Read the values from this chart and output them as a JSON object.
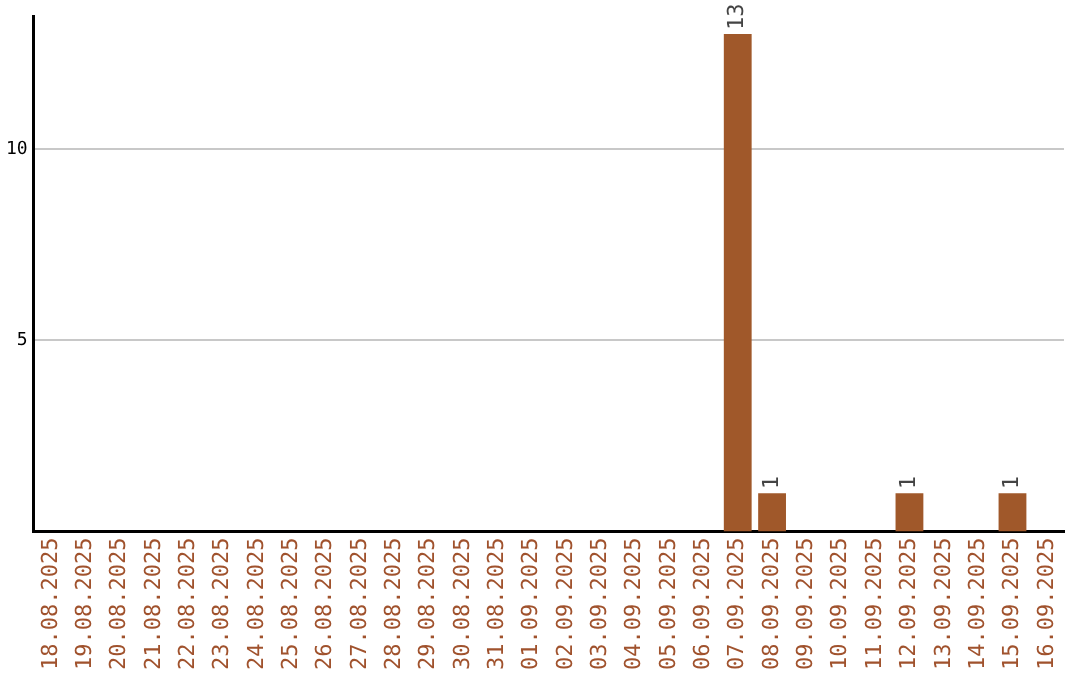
{
  "chart_data": {
    "type": "bar",
    "categories": [
      "18.08.2025",
      "19.08.2025",
      "20.08.2025",
      "21.08.2025",
      "22.08.2025",
      "23.08.2025",
      "24.08.2025",
      "25.08.2025",
      "26.08.2025",
      "27.08.2025",
      "28.08.2025",
      "29.08.2025",
      "30.08.2025",
      "31.08.2025",
      "01.09.2025",
      "02.09.2025",
      "03.09.2025",
      "04.09.2025",
      "05.09.2025",
      "06.09.2025",
      "07.09.2025",
      "08.09.2025",
      "09.09.2025",
      "10.09.2025",
      "11.09.2025",
      "12.09.2025",
      "13.09.2025",
      "14.09.2025",
      "15.09.2025",
      "16.09.2025"
    ],
    "values": [
      0,
      0,
      0,
      0,
      0,
      0,
      0,
      0,
      0,
      0,
      0,
      0,
      0,
      0,
      0,
      0,
      0,
      0,
      0,
      0,
      13,
      1,
      0,
      0,
      0,
      1,
      0,
      0,
      1,
      0
    ],
    "value_labels": [
      null,
      null,
      null,
      null,
      null,
      null,
      null,
      null,
      null,
      null,
      null,
      null,
      null,
      null,
      null,
      null,
      null,
      null,
      null,
      null,
      "13",
      "1",
      null,
      null,
      null,
      "1",
      null,
      null,
      "1",
      null
    ],
    "color": "#a0582a",
    "ylim": [
      0,
      13.45
    ],
    "yticks": [
      5,
      10
    ],
    "grid": "y",
    "legend": false
  }
}
